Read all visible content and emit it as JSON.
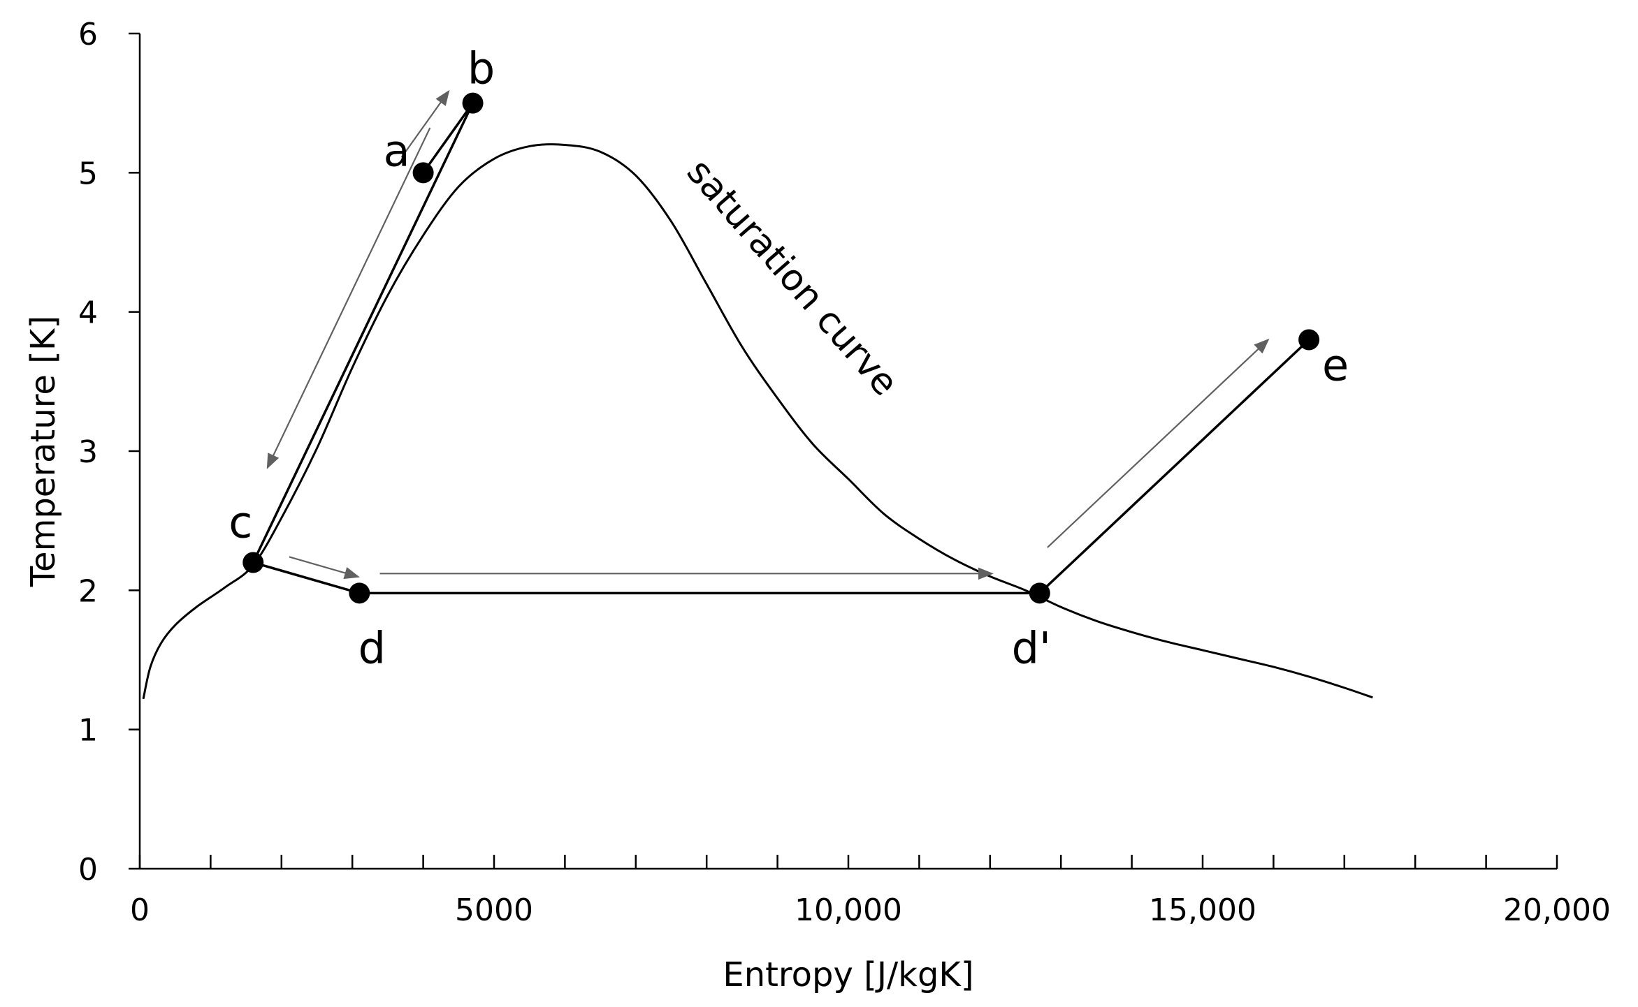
{
  "chart_data": {
    "type": "line",
    "xlabel": "Entropy [J/kgK]",
    "ylabel": "Temperature  [K]",
    "xlim": [
      0,
      20000
    ],
    "ylim": [
      0,
      6
    ],
    "x_ticks": [
      0,
      5000,
      10000,
      15000,
      20000
    ],
    "x_tick_labels": [
      "0",
      "5000",
      "10,000",
      "15,000",
      "20,000"
    ],
    "y_ticks": [
      0,
      1,
      2,
      3,
      4,
      5,
      6
    ],
    "y_tick_labels": [
      "0",
      "1",
      "2",
      "3",
      "4",
      "5",
      "6"
    ],
    "grid": false,
    "saturation_curve": {
      "label": "saturation curve",
      "points": [
        [
          50,
          1.22
        ],
        [
          150,
          1.45
        ],
        [
          300,
          1.62
        ],
        [
          500,
          1.75
        ],
        [
          800,
          1.88
        ],
        [
          1200,
          2.02
        ],
        [
          1600,
          2.18
        ],
        [
          2000,
          2.52
        ],
        [
          2500,
          3.02
        ],
        [
          3000,
          3.6
        ],
        [
          3500,
          4.12
        ],
        [
          4000,
          4.55
        ],
        [
          4500,
          4.9
        ],
        [
          5000,
          5.1
        ],
        [
          5500,
          5.19
        ],
        [
          6000,
          5.2
        ],
        [
          6500,
          5.15
        ],
        [
          7000,
          4.98
        ],
        [
          7500,
          4.65
        ],
        [
          8000,
          4.2
        ],
        [
          8500,
          3.75
        ],
        [
          9000,
          3.38
        ],
        [
          9500,
          3.05
        ],
        [
          10000,
          2.8
        ],
        [
          10500,
          2.55
        ],
        [
          11000,
          2.37
        ],
        [
          11500,
          2.22
        ],
        [
          12000,
          2.1
        ],
        [
          12500,
          2.0
        ],
        [
          13000,
          1.88
        ],
        [
          13500,
          1.78
        ],
        [
          14000,
          1.7
        ],
        [
          14500,
          1.63
        ],
        [
          15000,
          1.57
        ],
        [
          15500,
          1.51
        ],
        [
          16000,
          1.45
        ],
        [
          16500,
          1.38
        ],
        [
          17000,
          1.3
        ],
        [
          17400,
          1.23
        ]
      ]
    },
    "points": [
      {
        "label": "a",
        "x": 4000,
        "y": 5.0
      },
      {
        "label": "b",
        "x": 4700,
        "y": 5.5
      },
      {
        "label": "c",
        "x": 1600,
        "y": 2.2
      },
      {
        "label": "d",
        "x": 3100,
        "y": 1.98
      },
      {
        "label": "d'",
        "x": 12700,
        "y": 1.98
      },
      {
        "label": "e",
        "x": 16500,
        "y": 3.8
      }
    ],
    "process_path": [
      "a",
      "b",
      "c",
      "d",
      "d'",
      "e"
    ],
    "colors": {
      "lines": "#000000",
      "arrows": "#606060"
    }
  }
}
